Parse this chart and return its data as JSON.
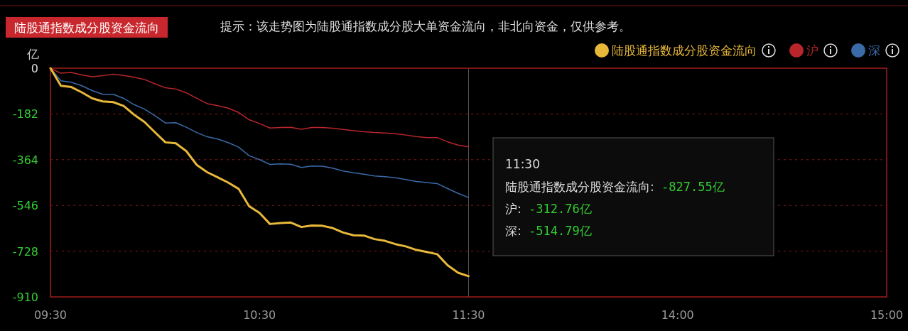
{
  "chart_data": {
    "type": "line",
    "title": "陆股通指数成分股资金流向",
    "subtitle": "提示：该走势图为陆股通指数成分股大单资金流向，非北向资金，仅供参考。",
    "ylabel": "亿",
    "categories": [
      "09:30",
      null,
      null,
      null,
      null,
      null,
      null,
      null,
      null,
      null,
      null,
      null,
      null,
      null,
      null,
      null,
      null,
      null,
      null,
      null,
      "10:30",
      null,
      null,
      null,
      null,
      null,
      null,
      null,
      null,
      null,
      null,
      null,
      null,
      null,
      null,
      null,
      null,
      null,
      null,
      null,
      "11:30",
      null,
      null,
      null,
      null,
      null,
      null,
      null,
      null,
      null,
      null,
      null,
      null,
      null,
      null,
      null,
      null,
      null,
      null,
      null,
      "14:00",
      null,
      null,
      null,
      null,
      null,
      null,
      null,
      null,
      null,
      null,
      null,
      null,
      null,
      null,
      null,
      null,
      null,
      null,
      null,
      "15:00"
    ],
    "ylim": [
      -910,
      0
    ],
    "yticks": [
      0,
      -182,
      -364,
      -546,
      -728,
      -910
    ],
    "grid": "y",
    "legend": "top right",
    "series": [
      {
        "name": "陆股通指数成分股资金流向",
        "color": "#e8b83a",
        "values": [
          0,
          -70,
          -75,
          -96,
          -120,
          -132,
          -135,
          -150,
          -185,
          -214,
          -255,
          -295,
          -299,
          -330,
          -385,
          -414,
          -434,
          -455,
          -480,
          -549,
          -576,
          -620,
          -616,
          -614,
          -632,
          -626,
          -627,
          -636,
          -654,
          -665,
          -666,
          -680,
          -687,
          -700,
          -709,
          -723,
          -731,
          -740,
          -784,
          -814,
          -827.55,
          null,
          null,
          null,
          null,
          null,
          null,
          null,
          null,
          null,
          null,
          null,
          null,
          null,
          null,
          null,
          null,
          null,
          null,
          null,
          null,
          null,
          null,
          null,
          null,
          null,
          null,
          null,
          null,
          null,
          null,
          null,
          null,
          null,
          null,
          null,
          null,
          null,
          null,
          null,
          null
        ]
      },
      {
        "name": "沪",
        "color": "#b8262b",
        "values": [
          0,
          -20,
          -17,
          -27,
          -34,
          -30,
          -24,
          -29,
          -36,
          -45,
          -62,
          -78,
          -83,
          -98,
          -120,
          -141,
          -149,
          -159,
          -176,
          -205,
          -220,
          -238,
          -236,
          -235,
          -243,
          -236,
          -236,
          -239,
          -244,
          -249,
          -253,
          -256,
          -258,
          -261,
          -266,
          -272,
          -276,
          -276,
          -293,
          -306,
          -312.76,
          null,
          null,
          null,
          null,
          null,
          null,
          null,
          null,
          null,
          null,
          null,
          null,
          null,
          null,
          null,
          null,
          null,
          null,
          null,
          null,
          null,
          null,
          null,
          null,
          null,
          null,
          null,
          null,
          null,
          null,
          null,
          null,
          null,
          null,
          null,
          null,
          null,
          null,
          null,
          null
        ]
      },
      {
        "name": "深",
        "color": "#3a6aa8",
        "values": [
          0,
          -50,
          -56,
          -70,
          -89,
          -104,
          -104,
          -120,
          -145,
          -163,
          -189,
          -218,
          -217,
          -235,
          -256,
          -273,
          -282,
          -296,
          -314,
          -348,
          -364,
          -383,
          -381,
          -382,
          -395,
          -389,
          -390,
          -398,
          -409,
          -416,
          -422,
          -429,
          -432,
          -436,
          -443,
          -451,
          -455,
          -459,
          -479,
          -498,
          -514.79,
          null,
          null,
          null,
          null,
          null,
          null,
          null,
          null,
          null,
          null,
          null,
          null,
          null,
          null,
          null,
          null,
          null,
          null,
          null,
          null,
          null,
          null,
          null,
          null,
          null,
          null,
          null,
          null,
          null,
          null,
          null,
          null,
          null,
          null,
          null,
          null,
          null,
          null,
          null,
          null
        ]
      }
    ],
    "ref_lines": [
      {
        "axis": "x",
        "value": "11:30",
        "color": "#555555"
      }
    ],
    "annotations": [
      "11:30",
      "陆股通指数成分股资金流向: -827.55亿",
      "沪: -312.76亿",
      "深: -514.79亿"
    ]
  }
}
